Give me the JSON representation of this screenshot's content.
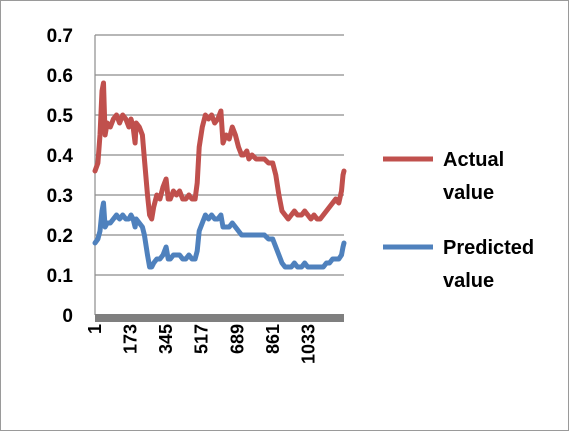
{
  "chart_data": {
    "type": "line",
    "title": "",
    "xlabel": "",
    "ylabel": "",
    "ylim": [
      0,
      0.7
    ],
    "y_ticks": [
      "0",
      "0.1",
      "0.2",
      "0.3",
      "0.4",
      "0.5",
      "0.6",
      "0.7"
    ],
    "x_ticks": [
      "1",
      "173",
      "345",
      "517",
      "689",
      "861",
      "1033"
    ],
    "x_range": [
      1,
      1205
    ],
    "grid": "horizontal",
    "legend_position": "right",
    "series": [
      {
        "name": "Actual value",
        "color": "#c0504d",
        "points": [
          [
            1,
            0.36
          ],
          [
            15,
            0.38
          ],
          [
            25,
            0.45
          ],
          [
            35,
            0.56
          ],
          [
            42,
            0.58
          ],
          [
            50,
            0.45
          ],
          [
            60,
            0.48
          ],
          [
            75,
            0.47
          ],
          [
            90,
            0.49
          ],
          [
            105,
            0.5
          ],
          [
            120,
            0.48
          ],
          [
            135,
            0.5
          ],
          [
            150,
            0.49
          ],
          [
            165,
            0.47
          ],
          [
            175,
            0.49
          ],
          [
            185,
            0.47
          ],
          [
            195,
            0.43
          ],
          [
            200,
            0.48
          ],
          [
            215,
            0.47
          ],
          [
            230,
            0.45
          ],
          [
            240,
            0.39
          ],
          [
            255,
            0.3
          ],
          [
            265,
            0.25
          ],
          [
            275,
            0.24
          ],
          [
            285,
            0.27
          ],
          [
            300,
            0.3
          ],
          [
            315,
            0.29
          ],
          [
            330,
            0.32
          ],
          [
            345,
            0.34
          ],
          [
            355,
            0.29
          ],
          [
            365,
            0.29
          ],
          [
            380,
            0.31
          ],
          [
            395,
            0.3
          ],
          [
            410,
            0.31
          ],
          [
            425,
            0.29
          ],
          [
            440,
            0.29
          ],
          [
            455,
            0.3
          ],
          [
            470,
            0.29
          ],
          [
            485,
            0.29
          ],
          [
            495,
            0.33
          ],
          [
            505,
            0.42
          ],
          [
            520,
            0.47
          ],
          [
            535,
            0.5
          ],
          [
            550,
            0.49
          ],
          [
            565,
            0.5
          ],
          [
            580,
            0.48
          ],
          [
            595,
            0.49
          ],
          [
            610,
            0.51
          ],
          [
            620,
            0.43
          ],
          [
            635,
            0.45
          ],
          [
            650,
            0.44
          ],
          [
            665,
            0.47
          ],
          [
            680,
            0.45
          ],
          [
            695,
            0.42
          ],
          [
            710,
            0.4
          ],
          [
            720,
            0.4
          ],
          [
            735,
            0.41
          ],
          [
            745,
            0.39
          ],
          [
            760,
            0.4
          ],
          [
            780,
            0.39
          ],
          [
            800,
            0.39
          ],
          [
            820,
            0.39
          ],
          [
            840,
            0.38
          ],
          [
            860,
            0.38
          ],
          [
            875,
            0.35
          ],
          [
            890,
            0.3
          ],
          [
            905,
            0.26
          ],
          [
            920,
            0.25
          ],
          [
            935,
            0.24
          ],
          [
            950,
            0.25
          ],
          [
            965,
            0.26
          ],
          [
            980,
            0.25
          ],
          [
            1000,
            0.25
          ],
          [
            1015,
            0.26
          ],
          [
            1030,
            0.25
          ],
          [
            1045,
            0.24
          ],
          [
            1060,
            0.25
          ],
          [
            1075,
            0.24
          ],
          [
            1090,
            0.24
          ],
          [
            1105,
            0.25
          ],
          [
            1120,
            0.26
          ],
          [
            1135,
            0.27
          ],
          [
            1150,
            0.28
          ],
          [
            1165,
            0.29
          ],
          [
            1180,
            0.28
          ],
          [
            1193,
            0.31
          ],
          [
            1200,
            0.35
          ],
          [
            1205,
            0.36
          ]
        ]
      },
      {
        "name": "Predicted value",
        "color": "#4f81bd",
        "points": [
          [
            1,
            0.18
          ],
          [
            15,
            0.19
          ],
          [
            25,
            0.21
          ],
          [
            35,
            0.26
          ],
          [
            42,
            0.28
          ],
          [
            50,
            0.22
          ],
          [
            60,
            0.23
          ],
          [
            75,
            0.23
          ],
          [
            90,
            0.24
          ],
          [
            105,
            0.25
          ],
          [
            120,
            0.24
          ],
          [
            135,
            0.25
          ],
          [
            150,
            0.24
          ],
          [
            165,
            0.24
          ],
          [
            175,
            0.25
          ],
          [
            185,
            0.24
          ],
          [
            195,
            0.22
          ],
          [
            200,
            0.24
          ],
          [
            215,
            0.23
          ],
          [
            230,
            0.22
          ],
          [
            240,
            0.2
          ],
          [
            255,
            0.15
          ],
          [
            265,
            0.12
          ],
          [
            275,
            0.12
          ],
          [
            285,
            0.13
          ],
          [
            300,
            0.14
          ],
          [
            315,
            0.14
          ],
          [
            330,
            0.15
          ],
          [
            345,
            0.17
          ],
          [
            355,
            0.14
          ],
          [
            365,
            0.14
          ],
          [
            380,
            0.15
          ],
          [
            395,
            0.15
          ],
          [
            410,
            0.15
          ],
          [
            425,
            0.14
          ],
          [
            440,
            0.14
          ],
          [
            455,
            0.15
          ],
          [
            470,
            0.14
          ],
          [
            485,
            0.14
          ],
          [
            495,
            0.16
          ],
          [
            505,
            0.21
          ],
          [
            520,
            0.23
          ],
          [
            535,
            0.25
          ],
          [
            550,
            0.24
          ],
          [
            565,
            0.25
          ],
          [
            580,
            0.24
          ],
          [
            595,
            0.24
          ],
          [
            610,
            0.25
          ],
          [
            620,
            0.22
          ],
          [
            635,
            0.22
          ],
          [
            650,
            0.22
          ],
          [
            665,
            0.23
          ],
          [
            680,
            0.22
          ],
          [
            695,
            0.21
          ],
          [
            710,
            0.2
          ],
          [
            720,
            0.2
          ],
          [
            735,
            0.2
          ],
          [
            745,
            0.2
          ],
          [
            760,
            0.2
          ],
          [
            780,
            0.2
          ],
          [
            800,
            0.2
          ],
          [
            820,
            0.2
          ],
          [
            840,
            0.19
          ],
          [
            860,
            0.19
          ],
          [
            875,
            0.17
          ],
          [
            890,
            0.15
          ],
          [
            905,
            0.13
          ],
          [
            920,
            0.12
          ],
          [
            935,
            0.12
          ],
          [
            950,
            0.12
          ],
          [
            965,
            0.13
          ],
          [
            980,
            0.12
          ],
          [
            1000,
            0.12
          ],
          [
            1015,
            0.13
          ],
          [
            1030,
            0.12
          ],
          [
            1045,
            0.12
          ],
          [
            1060,
            0.12
          ],
          [
            1075,
            0.12
          ],
          [
            1090,
            0.12
          ],
          [
            1105,
            0.12
          ],
          [
            1120,
            0.13
          ],
          [
            1135,
            0.13
          ],
          [
            1150,
            0.14
          ],
          [
            1165,
            0.14
          ],
          [
            1180,
            0.14
          ],
          [
            1193,
            0.15
          ],
          [
            1200,
            0.17
          ],
          [
            1205,
            0.18
          ]
        ]
      }
    ]
  }
}
